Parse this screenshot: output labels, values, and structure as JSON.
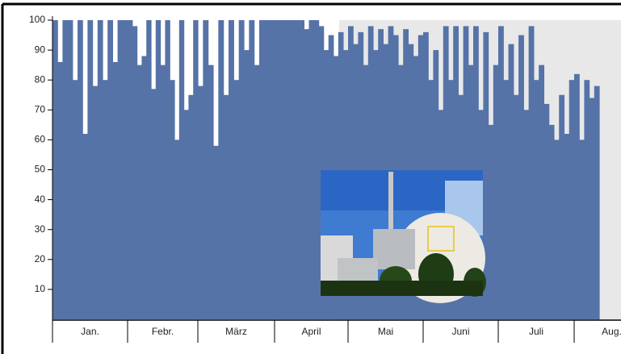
{
  "chart_data": {
    "type": "area-bars",
    "categories": [
      "Jan.",
      "Febr.",
      "März",
      "April",
      "Mai",
      "Juni",
      "Juli",
      "Aug."
    ],
    "values": [
      [
        100,
        86,
        100,
        100,
        80,
        100,
        62,
        100,
        78,
        100,
        80,
        100,
        86,
        100,
        100
      ],
      [
        100,
        98,
        85,
        88,
        100,
        77,
        100,
        85,
        100,
        80,
        60,
        100,
        70,
        75,
        100
      ],
      [
        78,
        100,
        85,
        58,
        100,
        75,
        100,
        80,
        100,
        90,
        100,
        85,
        100,
        100,
        100
      ],
      [
        100,
        100,
        100,
        100,
        100,
        100,
        97,
        100,
        100,
        98,
        90,
        95,
        88,
        96,
        90
      ],
      [
        98,
        92,
        96,
        85,
        98,
        90,
        97,
        92,
        98,
        95,
        85,
        97,
        92,
        88,
        95
      ],
      [
        96,
        80,
        90,
        70,
        98,
        80,
        98,
        75,
        98,
        85,
        98,
        70,
        96,
        65,
        85
      ],
      [
        98,
        80,
        92,
        75,
        95,
        70,
        98,
        80,
        85,
        72,
        65,
        60,
        75,
        62,
        80
      ],
      [
        82,
        60,
        80,
        74,
        78
      ]
    ],
    "color": "#5673a8",
    "ylim": [
      0,
      100
    ],
    "yticks": [
      10,
      20,
      30,
      40,
      50,
      60,
      70,
      80,
      90,
      100
    ]
  }
}
